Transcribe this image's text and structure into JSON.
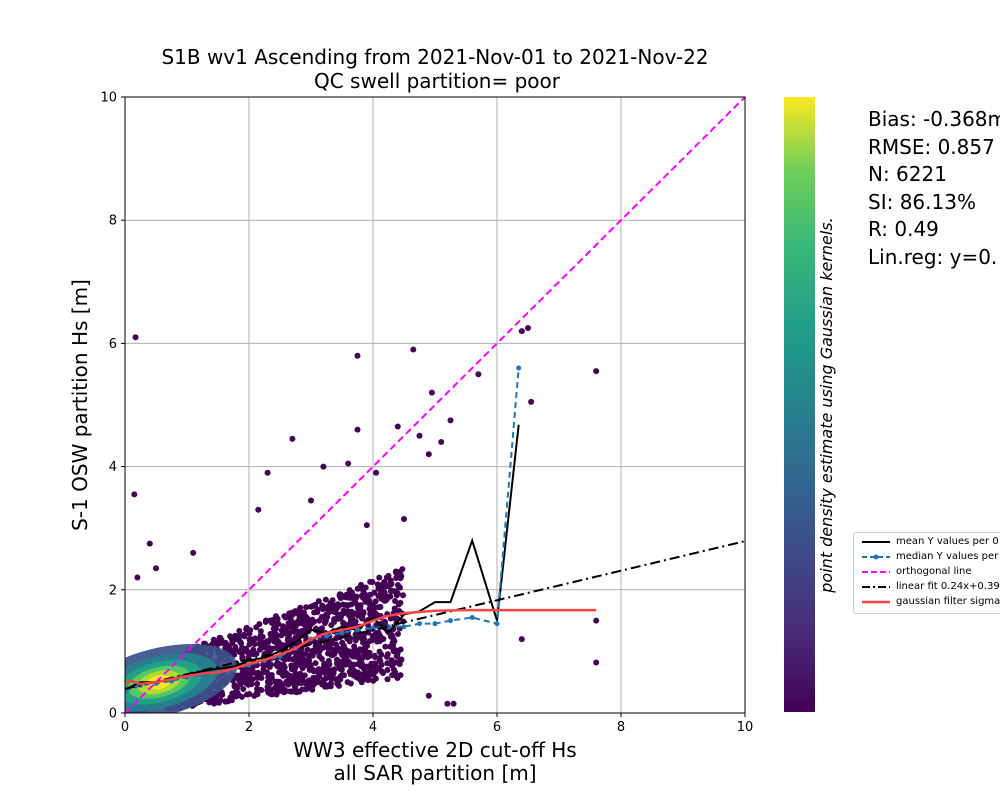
{
  "chart_data": {
    "type": "scatter",
    "title": "S1B wv1 Ascending from 2021-Nov-01 to 2021-Nov-22",
    "subtitle": "QC swell partition= poor",
    "xlabel_line1": "WW3 effective 2D cut-off Hs",
    "xlabel_line2": "all SAR partition [m]",
    "ylabel": "S-1 OSW partition Hs [m]",
    "xlim": [
      0,
      10
    ],
    "ylim": [
      0,
      10
    ],
    "x_ticks": [
      "0",
      "2",
      "4",
      "6",
      "8",
      "10"
    ],
    "y_ticks": [
      "0",
      "2",
      "4",
      "6",
      "8",
      "10"
    ],
    "grid": true,
    "colormap": "viridis",
    "colorbar_label": "point density estimate using Gaussian kernels.",
    "stats": {
      "bias": "Bias: -0.368m",
      "rmse": "RMSE: 0.857",
      "n": "N: 6221",
      "si": "SI: 86.13%",
      "r": "R: 0.49",
      "linreg": "Lin.reg: y=0."
    },
    "legend": {
      "placement": "right",
      "entries": [
        {
          "label": "mean Y values per 0",
          "color": "#000000",
          "style": "solid"
        },
        {
          "label": "median Y values per",
          "color": "#1f77b4",
          "style": "dashed-dot-marker"
        },
        {
          "label": "orthogonal line",
          "color": "#ff00ff",
          "style": "dashed"
        },
        {
          "label": "linear fit 0.24x+0.39",
          "color": "#000000",
          "style": "dashdot"
        },
        {
          "label": "gaussian filter sigma",
          "color": "#ff4444",
          "style": "solid"
        }
      ]
    },
    "series": [
      {
        "name": "mean Y values per 0",
        "color": "#000000",
        "x": [
          0.0,
          0.25,
          0.5,
          0.75,
          1.0,
          1.25,
          1.5,
          1.75,
          2.0,
          2.25,
          2.5,
          2.75,
          3.0,
          3.25,
          3.5,
          3.75,
          4.0,
          4.25,
          4.5,
          4.75,
          5.0,
          5.25,
          5.6,
          6.0,
          6.35
        ],
        "y": [
          0.38,
          0.5,
          0.5,
          0.55,
          0.62,
          0.68,
          0.72,
          0.75,
          0.85,
          0.9,
          1.0,
          1.15,
          1.35,
          1.3,
          1.4,
          1.35,
          1.55,
          1.3,
          1.6,
          1.65,
          1.8,
          1.8,
          2.8,
          1.5,
          4.68
        ]
      },
      {
        "name": "median Y values per",
        "color": "#1f77b4",
        "x": [
          0.0,
          0.25,
          0.5,
          0.75,
          1.0,
          1.25,
          1.5,
          1.75,
          2.0,
          2.25,
          2.5,
          2.75,
          3.0,
          3.25,
          3.5,
          3.75,
          4.0,
          4.25,
          4.5,
          4.75,
          5.0,
          5.25,
          5.6,
          6.0,
          6.35
        ],
        "y": [
          0.35,
          0.45,
          0.48,
          0.52,
          0.58,
          0.62,
          0.66,
          0.7,
          0.78,
          0.85,
          0.92,
          1.05,
          1.2,
          1.25,
          1.3,
          1.35,
          1.38,
          1.4,
          1.4,
          1.45,
          1.45,
          1.5,
          1.55,
          1.45,
          5.6
        ]
      },
      {
        "name": "orthogonal line",
        "color": "#ff00ff",
        "x": [
          0,
          10
        ],
        "y": [
          0,
          10
        ]
      },
      {
        "name": "linear fit 0.24x+0.39",
        "color": "#000000",
        "x": [
          0,
          10
        ],
        "y": [
          0.39,
          2.79
        ]
      },
      {
        "name": "gaussian filter sigma",
        "color": "#ff4444",
        "x": [
          0.0,
          0.1,
          0.25,
          0.5,
          0.75,
          1.0,
          1.25,
          1.5,
          1.75,
          2.0,
          2.25,
          2.5,
          2.75,
          3.0,
          3.25,
          3.5,
          3.75,
          4.0,
          4.25,
          4.5,
          5.0,
          5.5,
          6.0,
          7.0,
          7.6
        ],
        "y": [
          0.48,
          0.52,
          0.47,
          0.5,
          0.55,
          0.6,
          0.64,
          0.66,
          0.72,
          0.8,
          0.86,
          0.95,
          1.05,
          1.2,
          1.3,
          1.35,
          1.4,
          1.5,
          1.58,
          1.62,
          1.66,
          1.67,
          1.67,
          1.67,
          1.67
        ]
      }
    ],
    "outlier_points": [
      [
        0.17,
        6.1
      ],
      [
        0.15,
        3.55
      ],
      [
        3.75,
        5.8
      ],
      [
        4.65,
        5.9
      ],
      [
        5.7,
        5.5
      ],
      [
        6.4,
        6.2
      ],
      [
        6.5,
        6.25
      ],
      [
        6.55,
        5.05
      ],
      [
        7.6,
        5.55
      ],
      [
        3.75,
        4.6
      ],
      [
        4.4,
        4.65
      ],
      [
        4.75,
        4.5
      ],
      [
        5.1,
        4.4
      ],
      [
        5.25,
        4.75
      ],
      [
        4.95,
        5.2
      ],
      [
        4.9,
        4.2
      ],
      [
        3.6,
        4.05
      ],
      [
        4.05,
        3.9
      ],
      [
        3.2,
        4.0
      ],
      [
        2.7,
        4.45
      ],
      [
        2.3,
        3.9
      ],
      [
        3.9,
        3.05
      ],
      [
        4.5,
        3.15
      ],
      [
        2.15,
        3.3
      ],
      [
        3.0,
        3.45
      ],
      [
        0.4,
        2.75
      ],
      [
        1.1,
        2.6
      ],
      [
        0.5,
        2.35
      ],
      [
        0.2,
        2.2
      ],
      [
        7.6,
        1.5
      ],
      [
        7.6,
        0.82
      ],
      [
        6.4,
        1.2
      ],
      [
        5.2,
        0.15
      ],
      [
        5.3,
        0.15
      ],
      [
        4.9,
        0.28
      ]
    ]
  }
}
